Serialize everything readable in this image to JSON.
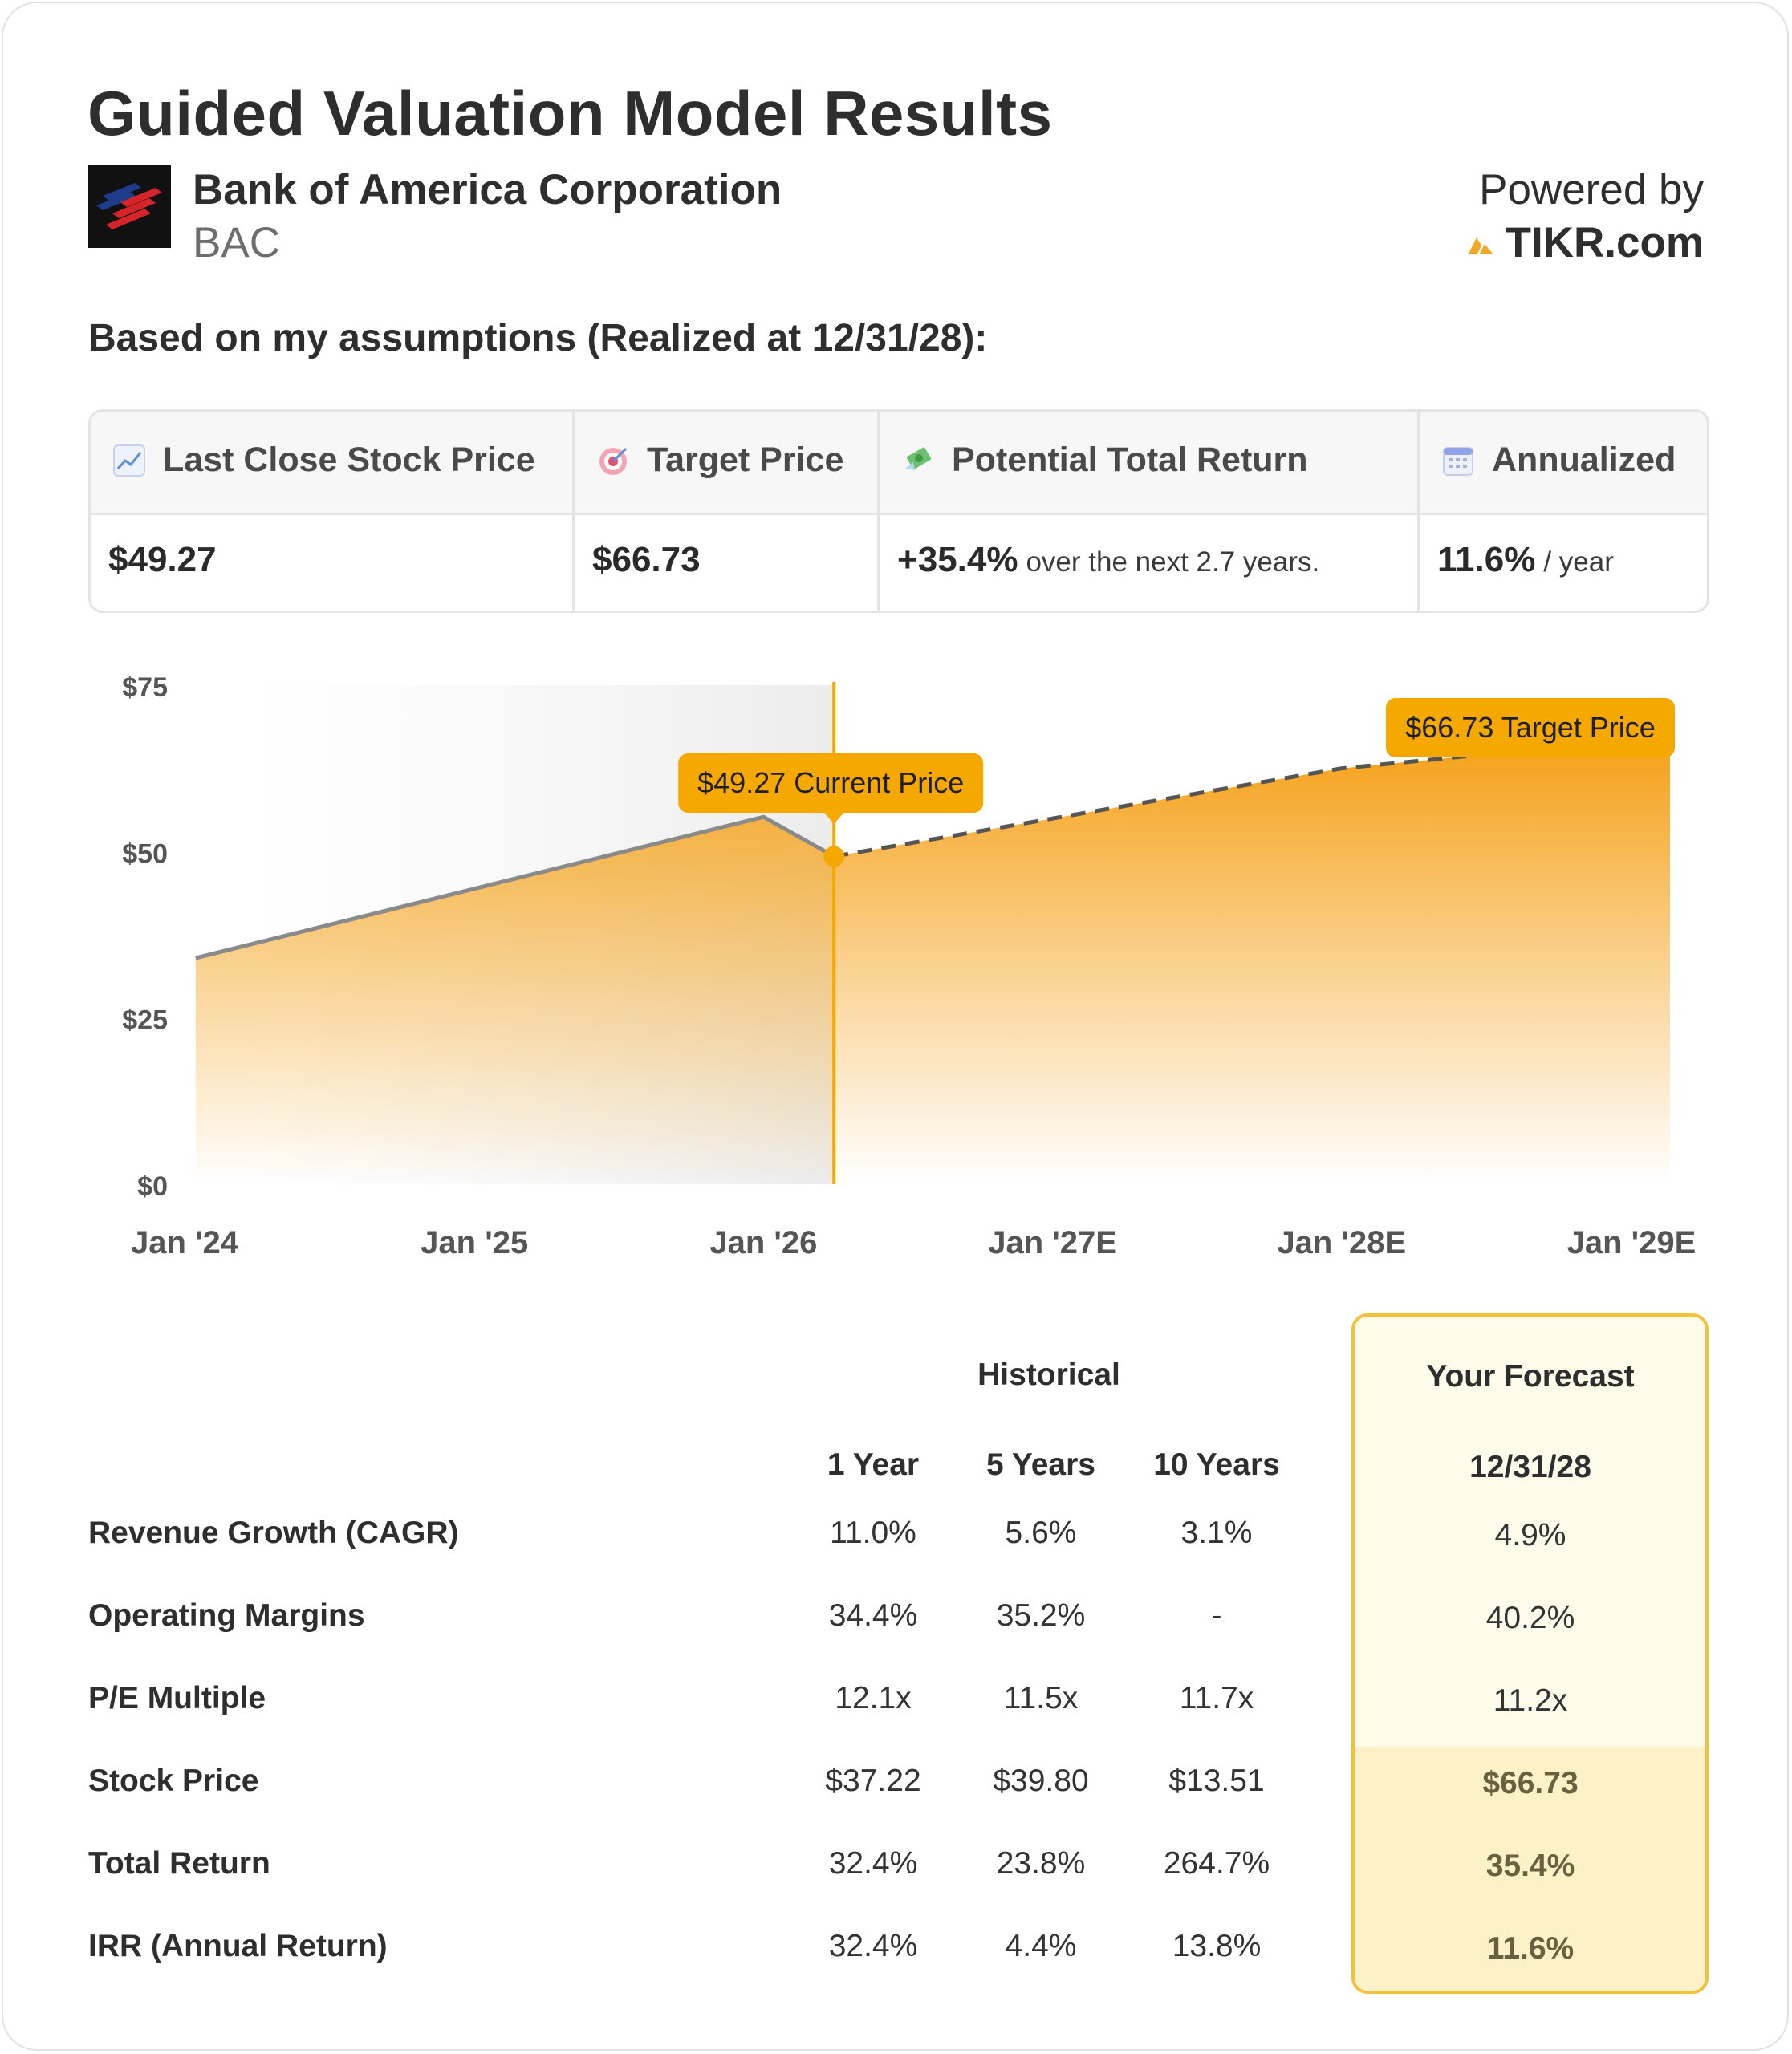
{
  "header": {
    "title": "Guided Valuation Model Results",
    "company": "Bank of America Corporation",
    "ticker": "BAC",
    "powered_by": "Powered by",
    "brand": "TIKR.com"
  },
  "subtitle": "Based on my assumptions (Realized at 12/31/28):",
  "metrics": {
    "last_close_label": "Last Close Stock Price",
    "last_close_value": "$49.27",
    "target_label": "Target Price",
    "target_value": "$66.73",
    "return_label": "Potential Total Return",
    "return_value": "+35.4%",
    "return_note": "over the next 2.7 years.",
    "annualized_label": "Annualized",
    "annualized_value": "11.6%",
    "annualized_note": "/ year"
  },
  "chart_data": {
    "type": "area",
    "y_ticks": [
      "$75",
      "$50",
      "$25",
      "$0"
    ],
    "ylim": [
      0,
      75
    ],
    "x_ticks": [
      "Jan '24",
      "Jan '25",
      "Jan '26",
      "Jan '27E",
      "Jan '28E",
      "Jan '29E"
    ],
    "historical": [
      {
        "x": "2024-01-15",
        "y": 34
      },
      {
        "x": "2026-01-01",
        "y": 55.2
      },
      {
        "x": "2026-03-31",
        "y": 49.27
      }
    ],
    "forecast": [
      {
        "x": "2026-03-31",
        "y": 49.27
      },
      {
        "x": "2028-01-01",
        "y": 62.5
      },
      {
        "x": "2028-12-31",
        "y": 66.73
      }
    ],
    "current_label": "$49.27 Current Price",
    "target_label": "$66.73 Target Price",
    "colors": {
      "accent": "#f5a623",
      "line": "#8a8a8a",
      "forecast_line": "#555555",
      "label_bg": "#f5a800"
    }
  },
  "table": {
    "group_historical": "Historical",
    "group_forecast": "Your Forecast",
    "col_1y": "1 Year",
    "col_5y": "5 Years",
    "col_10y": "10 Years",
    "col_forecast": "12/31/28",
    "rows": [
      {
        "label": "Revenue Growth (CAGR)",
        "y1": "11.0%",
        "y5": "5.6%",
        "y10": "3.1%",
        "f": "4.9%"
      },
      {
        "label": "Operating Margins",
        "y1": "34.4%",
        "y5": "35.2%",
        "y10": "-",
        "f": "40.2%"
      },
      {
        "label": "P/E Multiple",
        "y1": "12.1x",
        "y5": "11.5x",
        "y10": "11.7x",
        "f": "11.2x"
      },
      {
        "label": "Stock Price",
        "y1": "$37.22",
        "y5": "$39.80",
        "y10": "$13.51",
        "f": "$66.73"
      },
      {
        "label": "Total Return",
        "y1": "32.4%",
        "y5": "23.8%",
        "y10": "264.7%",
        "f": "35.4%"
      },
      {
        "label": "IRR (Annual Return)",
        "y1": "32.4%",
        "y5": "4.4%",
        "y10": "13.8%",
        "f": "11.6%"
      }
    ]
  }
}
